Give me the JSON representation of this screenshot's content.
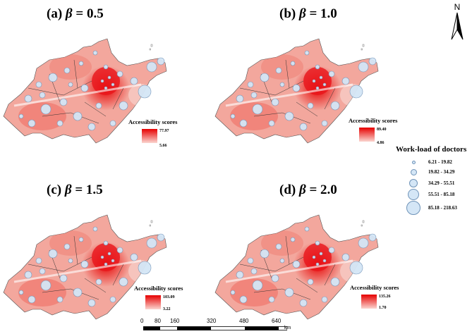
{
  "panels": [
    {
      "letter": "(a)",
      "beta_symbol": "β",
      "equals": "= 0.5",
      "legend_title": "Accessibility scores",
      "max": "77.97",
      "min": "5.66"
    },
    {
      "letter": "(b)",
      "beta_symbol": "β",
      "equals": "= 1.0",
      "legend_title": "Accessibility scores",
      "max": "89.40",
      "min": "4.86"
    },
    {
      "letter": "(c)",
      "beta_symbol": "β",
      "equals": "= 1.5",
      "legend_title": "Accessibility scores",
      "max": "103.09",
      "min": "3.22"
    },
    {
      "letter": "(d)",
      "beta_symbol": "β",
      "equals": "= 2.0",
      "legend_title": "Accessibility scores",
      "max": "135.26",
      "min": "1.70"
    }
  ],
  "workload": {
    "title": "Work-load of doctors",
    "classes": [
      "6.21 - 19.82",
      "19.82 - 34.29",
      "34.29 - 55.51",
      "55.51 - 85.18",
      "85.18 - 218.63"
    ]
  },
  "north_label": "N",
  "scale": {
    "ticks": [
      "0",
      "80",
      "160",
      "320",
      "480",
      "640"
    ],
    "unit": "km"
  },
  "colors": {
    "high": "#e60000",
    "low": "#fbd6d0",
    "circle_fill": "#d4e6f6",
    "circle_stroke": "#6f93b8"
  }
}
